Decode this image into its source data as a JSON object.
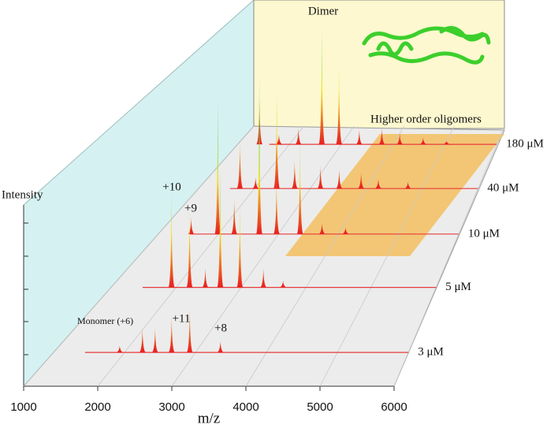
{
  "chart_data": {
    "type": "waterfall",
    "x_label": "m/z",
    "y_label": "Intensity",
    "xlim": [
      1000,
      6000
    ],
    "xticks": [
      1000,
      2000,
      3000,
      4000,
      5000,
      6000
    ],
    "ylim": [
      0,
      100
    ],
    "baseline_color": "#e83a3a",
    "colorscale": [
      "#e82020",
      "#f4e21c",
      "#34d45a",
      "#4a7ae0"
    ],
    "series": [
      {
        "name": "3 μM",
        "x": [
          1932,
          2253,
          2431,
          2664,
          2919,
          3351
        ],
        "values": [
          4,
          15,
          15,
          22,
          27,
          7
        ]
      },
      {
        "name": "5 μM",
        "x": [
          1930,
          2208,
          2450,
          2680,
          2982,
          3344,
          3646
        ],
        "values": [
          57,
          48,
          12,
          72,
          51,
          12,
          4
        ]
      },
      {
        "name": "10 μM",
        "x": [
          1548,
          1991,
          2265,
          2682,
          2969,
          3360,
          3726,
          4117
        ],
        "values": [
          10,
          82,
          22,
          97,
          34,
          56,
          7,
          4
        ]
      },
      {
        "name": "40 μM",
        "x": [
          1741,
          2021,
          2399,
          2720,
          3182,
          3517,
          3909,
          4217,
          4748
        ],
        "values": [
          29,
          7,
          58,
          17,
          14,
          12,
          10,
          6,
          4
        ]
      },
      {
        "name": "180 μM",
        "x": [
          1421,
          1797,
          2173,
          2625,
          2956,
          3347,
          3783,
          4129,
          4580,
          5031
        ],
        "values": [
          28,
          6,
          10,
          70,
          46,
          9,
          10,
          7,
          4,
          2
        ]
      }
    ],
    "annotations": [
      "Dimer",
      "Higher order oligomers",
      "+10",
      "+9",
      "Monomer (+6)",
      "+11",
      "+8"
    ]
  }
}
